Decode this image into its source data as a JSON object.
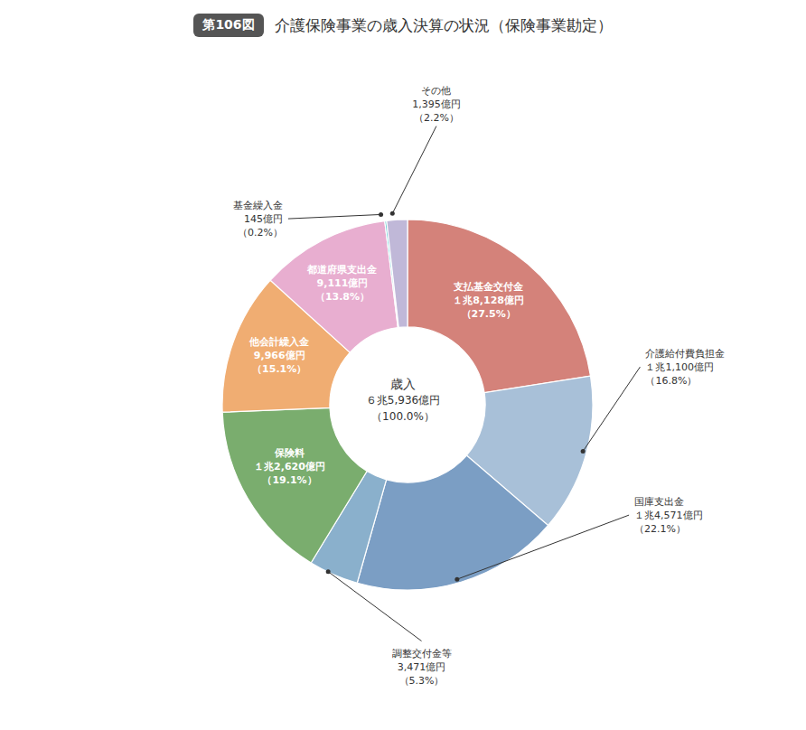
{
  "chart_data": {
    "type": "donut",
    "title": "介護保険事業の歳入決算の状況（保険事業勘定）",
    "title_badge": "第106図",
    "center_label": [
      "歳入",
      "６兆5,936億円",
      "（100.0%）"
    ],
    "categories": [
      "支払基金交付金",
      "介護給付費負担金",
      "国庫支出金",
      "調整交付金等",
      "保険料",
      "他会計繰入金",
      "都道府県支出金",
      "基金繰入金",
      "その他"
    ],
    "values": [
      27.5,
      16.8,
      22.1,
      5.3,
      19.1,
      15.1,
      13.8,
      0.2,
      2.2
    ],
    "value_labels": [
      "１兆8,128億円\n（27.5%）",
      "１兆1,100億円\n（16.8%）",
      "１兆4,571億円\n（22.1%）",
      "3,471億円\n（5.3%）",
      "１兆2,620億円\n（19.1%）",
      "9,966億円\n（15.1%）",
      "9,111億円\n（13.8%）",
      "145億円\n（0.2%）",
      "1,395億円\n（2.2%）"
    ],
    "colors": [
      "#d4827a",
      "#a8c0d8",
      "#7b9ec4",
      "#8ab0cc",
      "#7aad6e",
      "#f0ad72",
      "#e8aed0",
      "#5ec8d0",
      "#c0b8d8"
    ]
  }
}
